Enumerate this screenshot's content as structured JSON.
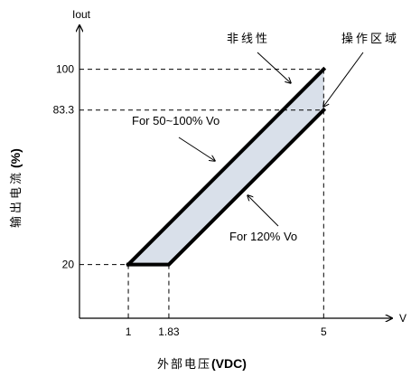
{
  "chart_data": {
    "type": "area",
    "x_unit": "V",
    "y_unit": "Iout",
    "xlabel_cn": "外部电压",
    "xlabel_unit": "(VDC)",
    "ylabel_cn": "输出电流",
    "ylabel_unit": "(%)",
    "x_ticks": [
      {
        "value": 1,
        "label": "1"
      },
      {
        "value": 1.83,
        "label": "1.83"
      },
      {
        "value": 5,
        "label": "5"
      }
    ],
    "y_ticks": [
      {
        "value": 20,
        "label": "20"
      },
      {
        "value": 83.3,
        "label": "83.3"
      },
      {
        "value": 100,
        "label": "100"
      }
    ],
    "xlim": [
      0,
      6.4
    ],
    "ylim": [
      -2,
      118
    ],
    "series": [
      {
        "name": "For 50~100% Vo",
        "points": [
          [
            1,
            20
          ],
          [
            5,
            100
          ]
        ]
      },
      {
        "name": "For 120% Vo",
        "points": [
          [
            1.83,
            20
          ],
          [
            5,
            83.3
          ]
        ]
      }
    ],
    "flat_segment": {
      "points": [
        [
          1,
          20
        ],
        [
          1.83,
          20
        ]
      ]
    },
    "region_fill": "#d9e0ea",
    "line_color": "#000000",
    "annotations": {
      "nonlinear": "非线性",
      "operating_region": "操作区域"
    }
  }
}
